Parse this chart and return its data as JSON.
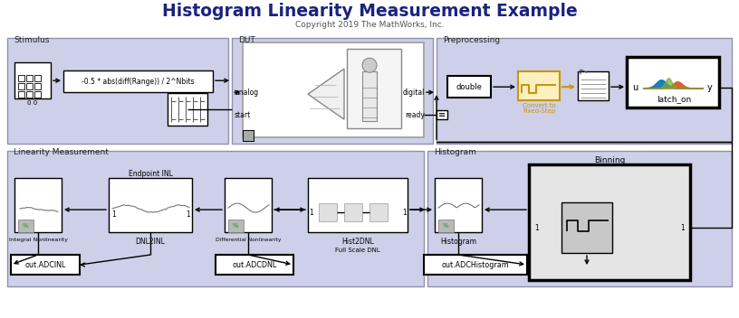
{
  "title": "Histogram Linearity Measurement Example",
  "subtitle": "Copyright 2019 The MathWorks, Inc.",
  "title_color": "#1a237e",
  "panel_color": "#cdd0e8",
  "panel_ec": "#9090b0",
  "white": "#ffffff",
  "formula": "-0.5 * abs(diff(Range)) / 2^Nbits",
  "convert_label1": "Convert to",
  "convert_label2": "Fixed-Step",
  "convert_color": "#c8950a",
  "latch_label": "latch_on",
  "sections": [
    "Stimulus",
    "DUT",
    "Preprocessing",
    "Linearity Measurement",
    "Histogram"
  ],
  "dut_ports": [
    "analog",
    "digital",
    "start",
    "ready"
  ],
  "dnl2inl_label": "DNL2INL",
  "hist2dnl_label": "Hist2DNL",
  "full_scale_label": "Full Scale DNL",
  "endpoint_label": "Endpoint INL",
  "binning_label": "Binning",
  "histogram_label": "Histogram",
  "inl_label": "Integral Nonlinearity",
  "dnl_label": "Differential Nonlinearity",
  "out_inl": "out.ADCINL",
  "out_dnl": "out.ADCDNL",
  "out_hist": "out.ADCHistogram",
  "double_label": "double"
}
